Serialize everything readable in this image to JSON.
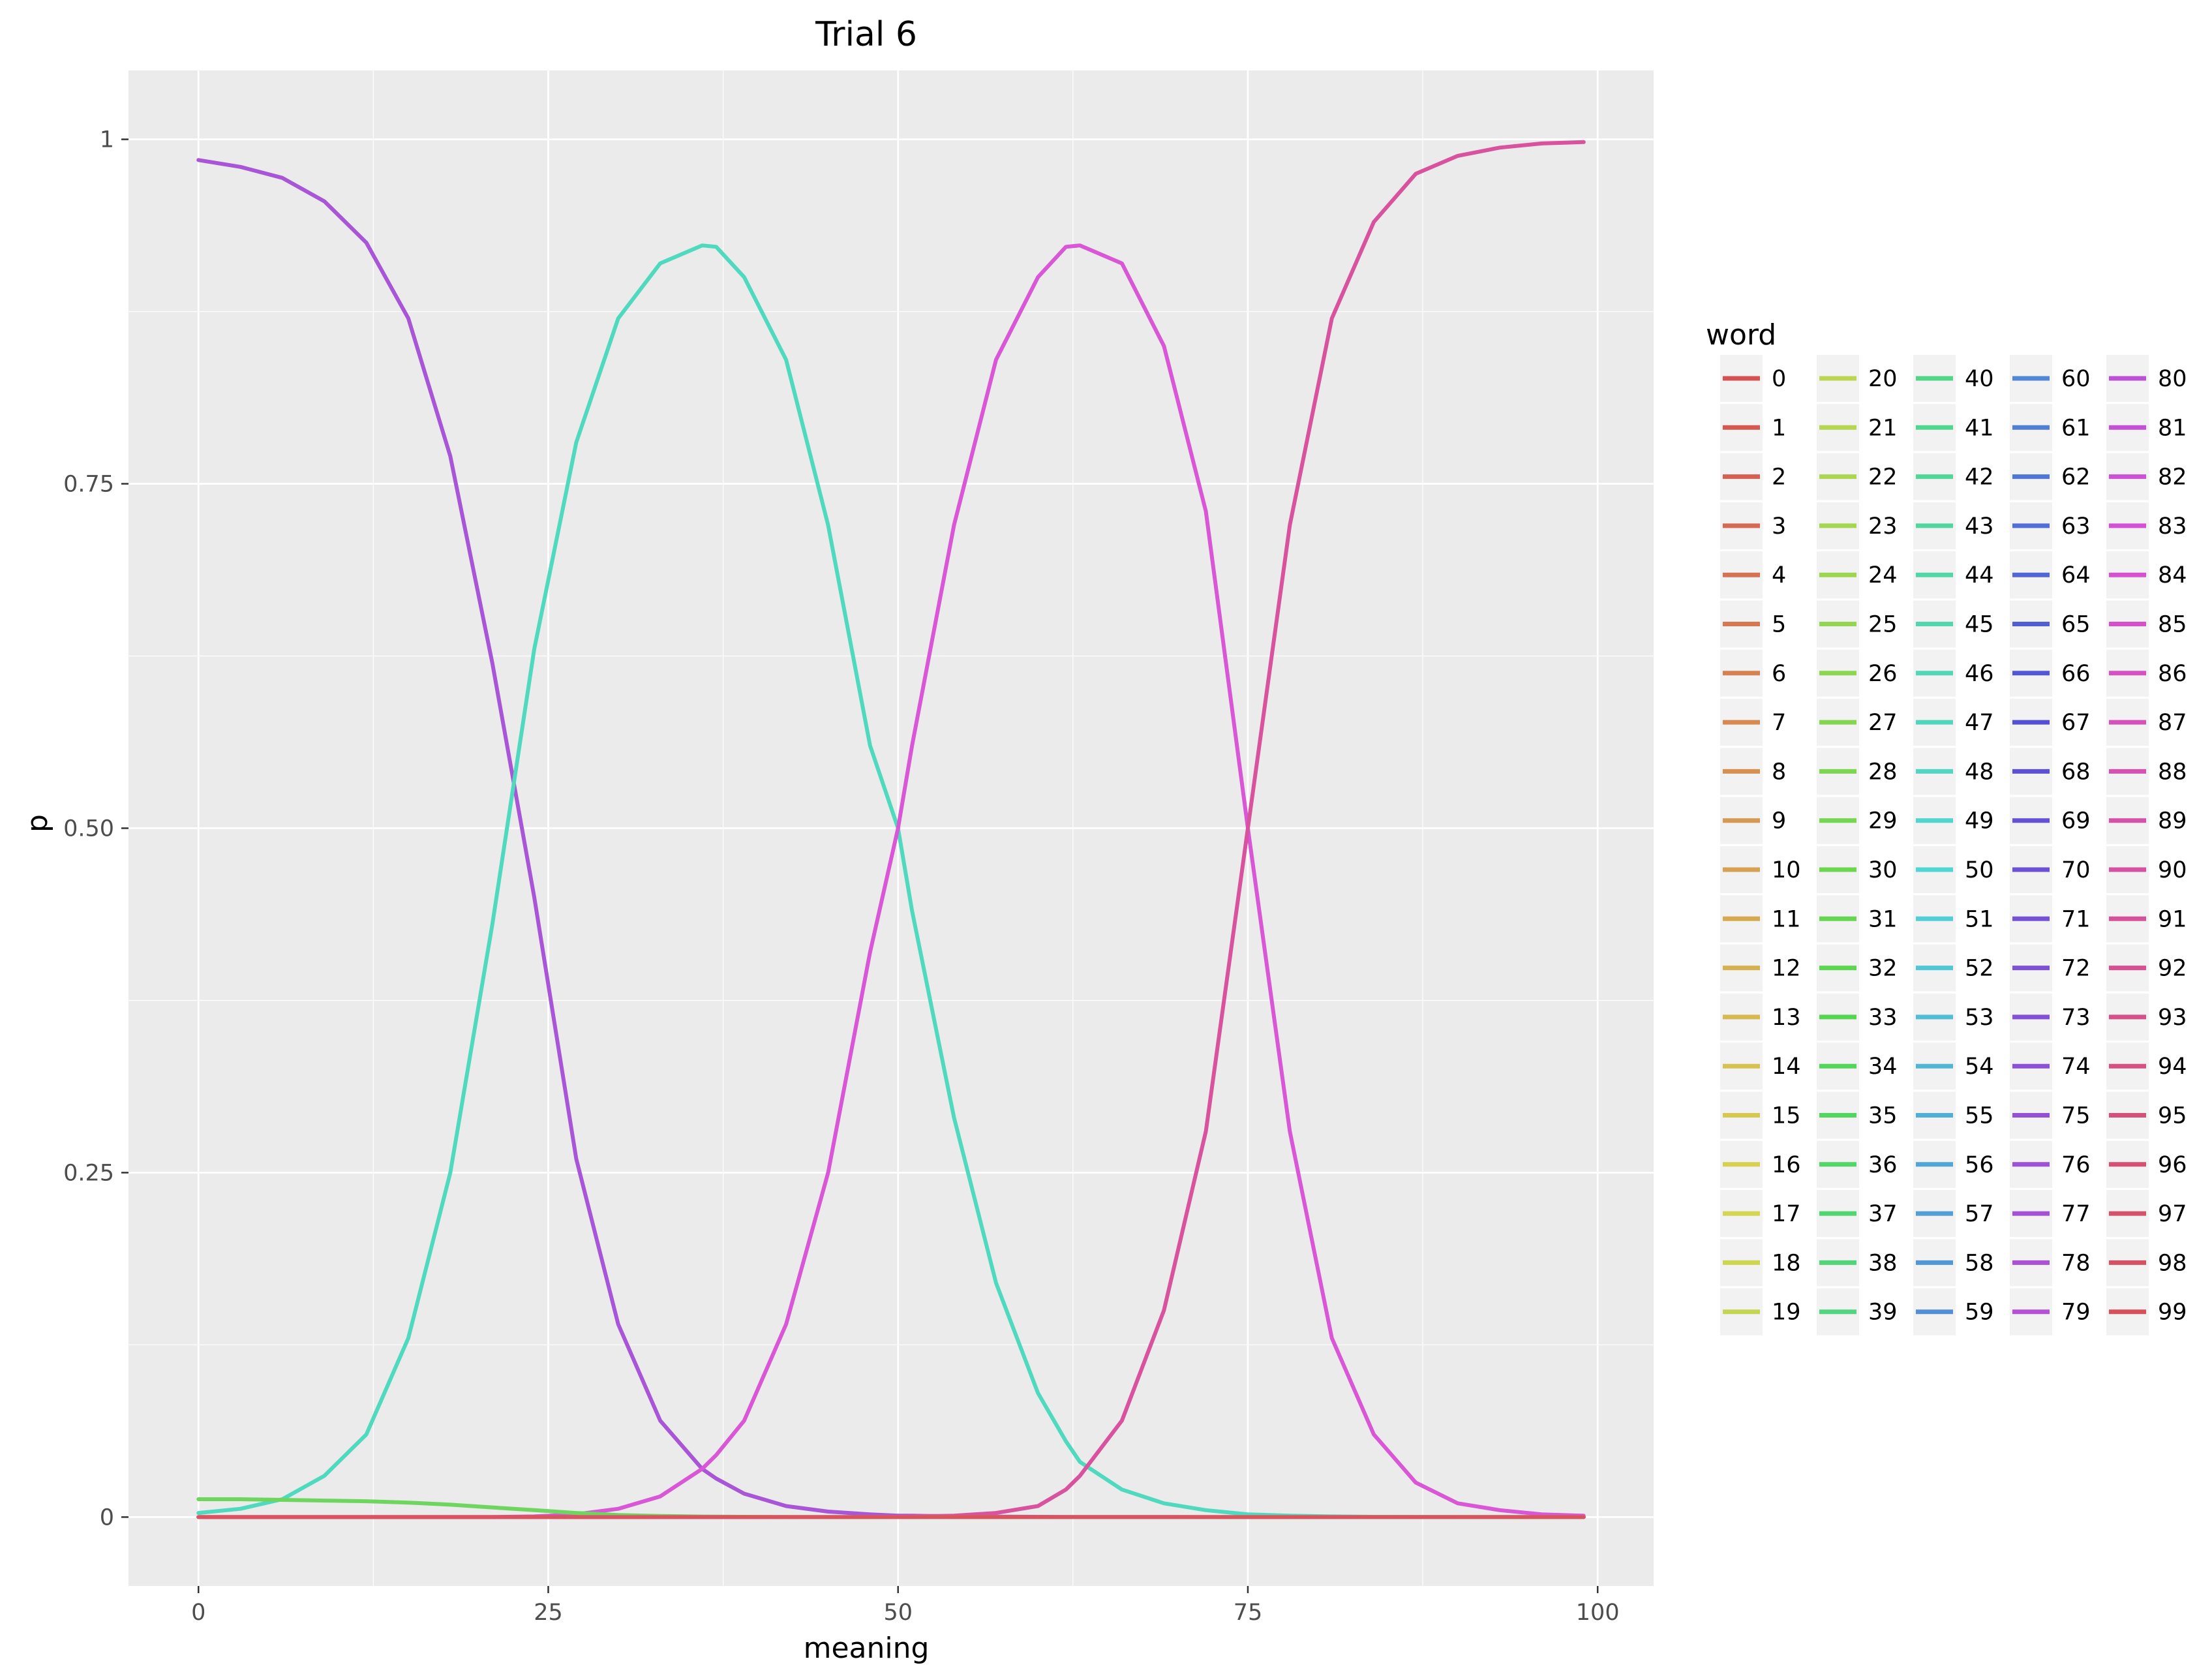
{
  "chart_data": {
    "type": "line",
    "title": "Trial 6",
    "xlabel": "meaning",
    "ylabel": "p",
    "xlim": [
      -5,
      104
    ],
    "ylim": [
      -0.05,
      1.05
    ],
    "x_ticks": [
      0,
      25,
      50,
      75,
      100
    ],
    "x_tick_labels": [
      "0",
      "25",
      "50",
      "75",
      "100"
    ],
    "y_ticks": [
      0,
      0.25,
      0.5,
      0.75,
      1
    ],
    "y_tick_labels": [
      "0",
      "0.25",
      "0.50",
      "0.75",
      "1"
    ],
    "grid": true,
    "legend_title": "word",
    "legend_position": "right",
    "x": [
      0,
      3,
      6,
      9,
      12,
      15,
      18,
      21,
      24,
      27,
      30,
      33,
      36,
      37,
      39,
      42,
      45,
      48,
      50,
      51,
      54,
      57,
      60,
      62,
      63,
      66,
      69,
      72,
      75,
      78,
      81,
      84,
      87,
      90,
      93,
      96,
      99
    ],
    "series": [
      {
        "name": "80",
        "color": "#A855D8",
        "values": [
          0.985,
          0.98,
          0.972,
          0.955,
          0.925,
          0.87,
          0.77,
          0.62,
          0.45,
          0.26,
          0.14,
          0.07,
          0.035,
          0.028,
          0.017,
          0.008,
          0.004,
          0.002,
          0.001,
          0.001,
          0.0005,
          0.0003,
          0.0002,
          0.0001,
          0.0001,
          0.0001,
          0.0001,
          0,
          0,
          0,
          0,
          0,
          0,
          0,
          0,
          0,
          0
        ]
      },
      {
        "name": "44",
        "color": "#4FD9BE",
        "values": [
          0.003,
          0.006,
          0.013,
          0.03,
          0.06,
          0.13,
          0.25,
          0.43,
          0.63,
          0.78,
          0.87,
          0.91,
          0.923,
          0.922,
          0.9,
          0.84,
          0.72,
          0.56,
          0.5,
          0.44,
          0.29,
          0.17,
          0.09,
          0.055,
          0.04,
          0.02,
          0.01,
          0.005,
          0.002,
          0.001,
          0.0005,
          0.0002,
          0.0001,
          0,
          0,
          0,
          0
        ]
      },
      {
        "name": "82",
        "color": "#D957D6",
        "values": [
          0,
          0,
          0,
          0,
          0,
          0,
          0,
          0,
          0.0005,
          0.002,
          0.006,
          0.015,
          0.035,
          0.045,
          0.07,
          0.14,
          0.25,
          0.41,
          0.5,
          0.56,
          0.72,
          0.84,
          0.9,
          0.922,
          0.923,
          0.91,
          0.85,
          0.73,
          0.5,
          0.28,
          0.13,
          0.06,
          0.025,
          0.01,
          0.005,
          0.002,
          0.001
        ]
      },
      {
        "name": "89",
        "color": "#D9529E",
        "values": [
          0,
          0,
          0,
          0,
          0,
          0,
          0,
          0,
          0,
          0,
          0,
          0,
          0,
          0,
          0,
          0,
          0,
          0,
          0.0002,
          0.0005,
          0.001,
          0.003,
          0.008,
          0.02,
          0.03,
          0.07,
          0.15,
          0.28,
          0.5,
          0.72,
          0.87,
          0.94,
          0.975,
          0.988,
          0.994,
          0.997,
          0.998
        ]
      },
      {
        "name": "30",
        "color": "#6ED65F",
        "values": [
          0.013,
          0.013,
          0.0125,
          0.012,
          0.0115,
          0.0105,
          0.009,
          0.007,
          0.005,
          0.003,
          0.0015,
          0.0008,
          0.0004,
          0.0003,
          0.0002,
          0.0001,
          0,
          0,
          0,
          0,
          0,
          0,
          0,
          0,
          0,
          0,
          0,
          0,
          0,
          0,
          0,
          0,
          0,
          0,
          0,
          0,
          0
        ]
      },
      {
        "name": "96",
        "color": "#D9545E",
        "values": [
          0,
          0,
          0,
          0,
          0,
          0,
          0,
          0,
          0,
          0,
          0,
          0,
          0,
          0,
          0,
          0,
          0,
          0,
          0,
          0,
          0,
          0,
          0,
          0,
          0,
          0,
          0,
          0,
          0,
          0,
          0,
          0,
          0,
          0,
          0,
          0,
          0
        ]
      }
    ],
    "legend_entries": [
      "0",
      "1",
      "2",
      "3",
      "4",
      "5",
      "6",
      "7",
      "8",
      "9",
      "10",
      "11",
      "12",
      "13",
      "14",
      "15",
      "16",
      "17",
      "18",
      "19",
      "20",
      "21",
      "22",
      "23",
      "24",
      "25",
      "26",
      "27",
      "28",
      "29",
      "30",
      "31",
      "32",
      "33",
      "34",
      "35",
      "36",
      "37",
      "38",
      "39",
      "40",
      "41",
      "42",
      "43",
      "44",
      "45",
      "46",
      "47",
      "48",
      "49",
      "50",
      "51",
      "52",
      "53",
      "54",
      "55",
      "56",
      "57",
      "58",
      "59",
      "60",
      "61",
      "62",
      "63",
      "64",
      "65",
      "66",
      "67",
      "68",
      "69",
      "70",
      "71",
      "72",
      "73",
      "74",
      "75",
      "76",
      "77",
      "78",
      "79",
      "80",
      "81",
      "82",
      "83",
      "84",
      "85",
      "86",
      "87",
      "88",
      "89",
      "90",
      "91",
      "92",
      "93",
      "94",
      "95",
      "96",
      "97",
      "98",
      "99"
    ],
    "colors": {
      "panel_background": "#EBEBEB",
      "grid": "#FFFFFF",
      "text": "#000000",
      "tick_text": "#4D4D4D"
    }
  }
}
